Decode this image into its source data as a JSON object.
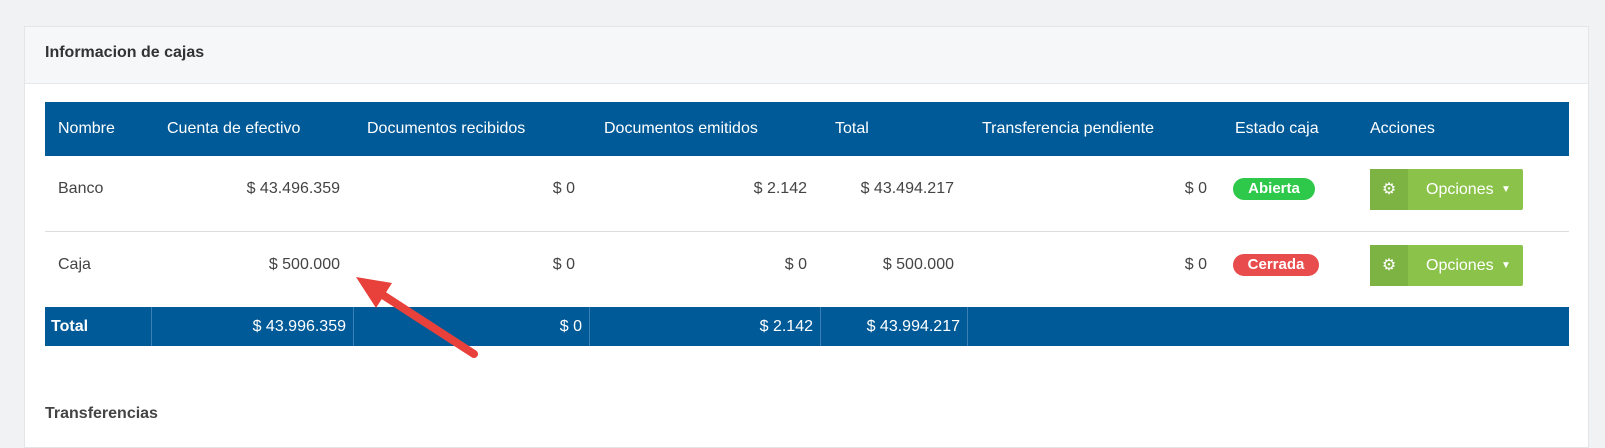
{
  "panel": {
    "title": "Informacion de cajas",
    "table": {
      "headers": [
        "Nombre",
        "Cuenta de efectivo",
        "Documentos recibidos",
        "Documentos emitidos",
        "Total",
        "Transferencia pendiente",
        "Estado caja",
        "Acciones"
      ],
      "rows": [
        [
          "Banco",
          "$ 43.496.359",
          "$ 0",
          "$ 2.142",
          "$ 43.494.217",
          "$ 0",
          "Abierta",
          "Opciones"
        ],
        [
          "Caja",
          "$ 500.000",
          "$ 0",
          "$ 0",
          "$ 500.000",
          "$ 0",
          "Cerrada",
          "Opciones"
        ]
      ],
      "total_row": [
        "Total",
        "$ 43.996.359",
        "$ 0",
        "$ 2.142",
        "$ 43.994.217"
      ]
    },
    "next_section": "Transferencias"
  }
}
